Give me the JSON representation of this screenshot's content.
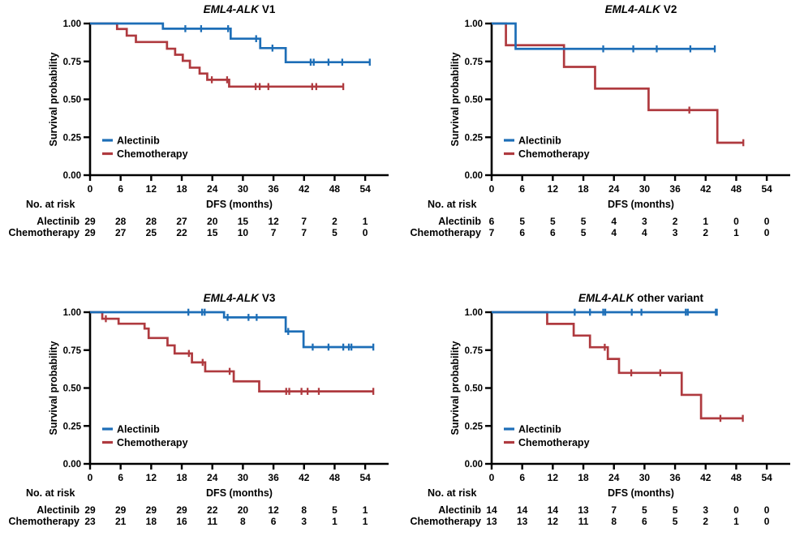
{
  "figure": {
    "colors": {
      "alectinib": "#1d6eb7",
      "chemotherapy": "#af3a3f",
      "axis": "#000000",
      "text": "#000000"
    },
    "risk_header": "No. at risk",
    "legend_labels": [
      "Alectinib",
      "Chemotherapy"
    ]
  },
  "chart_data": [
    {
      "id": "v1",
      "type": "line",
      "subtype": "kaplan-meier-step",
      "title_gene": "EML4-ALK",
      "title_variant": "V1",
      "xlabel": "DFS (months)",
      "ylabel": "Survival probability",
      "xticks": [
        0,
        6,
        12,
        18,
        24,
        30,
        36,
        42,
        48,
        54
      ],
      "yticks": [
        {
          "v": 1,
          "label": "1.00"
        },
        {
          "v": 0.75,
          "label": "0.75"
        },
        {
          "v": 0.5,
          "label": "0.50"
        },
        {
          "v": 0.25,
          "label": "0.25"
        },
        {
          "v": 0,
          "label": "0.00"
        }
      ],
      "xlim": [
        0,
        58
      ],
      "ylim": [
        0,
        1
      ],
      "legend_position": "inside-left-low",
      "grid": false,
      "series": [
        {
          "name": "Alectinib",
          "color_key": "alectinib",
          "drops": [
            [
              14.3,
              0.966
            ],
            [
              27.6,
              0.9
            ],
            [
              33.4,
              0.838
            ],
            [
              38.4,
              0.745
            ]
          ],
          "end_x": 54.9,
          "end_tick": true,
          "censors": [
            [
              18.7,
              0.966
            ],
            [
              21.8,
              0.966
            ],
            [
              27.1,
              0.966
            ],
            [
              32.6,
              0.9
            ],
            [
              35.8,
              0.838
            ],
            [
              43.3,
              0.745
            ],
            [
              43.9,
              0.745
            ],
            [
              46.8,
              0.745
            ],
            [
              49.5,
              0.745
            ]
          ]
        },
        {
          "name": "Chemotherapy",
          "color_key": "chemotherapy",
          "drops": [
            [
              5.3,
              0.964
            ],
            [
              7.2,
              0.92
            ],
            [
              9.0,
              0.878
            ],
            [
              15.1,
              0.834
            ],
            [
              16.7,
              0.794
            ],
            [
              18.2,
              0.754
            ],
            [
              19.6,
              0.709
            ],
            [
              21.5,
              0.67
            ],
            [
              23.0,
              0.629
            ],
            [
              27.3,
              0.584
            ]
          ],
          "end_x": 49.7,
          "end_tick": true,
          "censors": [
            [
              23.9,
              0.629
            ],
            [
              26.9,
              0.629
            ],
            [
              32.5,
              0.584
            ],
            [
              33.3,
              0.584
            ],
            [
              35.0,
              0.584
            ],
            [
              43.6,
              0.584
            ],
            [
              44.4,
              0.584
            ]
          ]
        }
      ],
      "risk_rows": [
        {
          "label": "Alectinib",
          "color_key": "alectinib",
          "values": [
            "29",
            "28",
            "28",
            "27",
            "20",
            "15",
            "12",
            "7",
            "2",
            "1"
          ]
        },
        {
          "label": "Chemotherapy",
          "color_key": "chemotherapy",
          "values": [
            "29",
            "27",
            "25",
            "22",
            "15",
            "10",
            "7",
            "7",
            "5",
            "0"
          ]
        }
      ]
    },
    {
      "id": "v2",
      "type": "line",
      "subtype": "kaplan-meier-step",
      "title_gene": "EML4-ALK",
      "title_variant": "V2",
      "xlabel": "DFS (months)",
      "ylabel": "Survival probability",
      "xticks": [
        0,
        6,
        12,
        18,
        24,
        30,
        36,
        42,
        48,
        54
      ],
      "yticks": [
        {
          "v": 1,
          "label": "1.00"
        },
        {
          "v": 0.75,
          "label": "0.75"
        },
        {
          "v": 0.5,
          "label": "0.50"
        },
        {
          "v": 0.25,
          "label": "0.25"
        },
        {
          "v": 0,
          "label": "0.00"
        }
      ],
      "xlim": [
        0,
        58
      ],
      "ylim": [
        0,
        1
      ],
      "legend_position": "inside-left-low",
      "grid": false,
      "series": [
        {
          "name": "Alectinib",
          "color_key": "alectinib",
          "drops": [
            [
              4.7,
              0.833
            ]
          ],
          "end_x": 43.8,
          "end_tick": true,
          "censors": [
            [
              21.9,
              0.833
            ],
            [
              27.8,
              0.833
            ],
            [
              32.4,
              0.833
            ],
            [
              39.0,
              0.833
            ]
          ]
        },
        {
          "name": "Chemotherapy",
          "color_key": "chemotherapy",
          "drops": [
            [
              2.8,
              0.857
            ],
            [
              14.2,
              0.714
            ],
            [
              20.3,
              0.571
            ],
            [
              30.8,
              0.429
            ],
            [
              44.3,
              0.214
            ]
          ],
          "end_x": 49.4,
          "end_tick": true,
          "censors": [
            [
              38.8,
              0.429
            ]
          ]
        }
      ],
      "risk_rows": [
        {
          "label": "Alectinib",
          "color_key": "alectinib",
          "values": [
            "6",
            "5",
            "5",
            "5",
            "4",
            "3",
            "2",
            "1",
            "0",
            "0"
          ]
        },
        {
          "label": "Chemotherapy",
          "color_key": "chemotherapy",
          "values": [
            "7",
            "6",
            "6",
            "5",
            "4",
            "4",
            "3",
            "2",
            "1",
            "0"
          ]
        }
      ]
    },
    {
      "id": "v3",
      "type": "line",
      "subtype": "kaplan-meier-step",
      "title_gene": "EML4-ALK",
      "title_variant": "V3",
      "xlabel": "DFS (months)",
      "ylabel": "Survival probability",
      "xticks": [
        0,
        6,
        12,
        18,
        24,
        30,
        36,
        42,
        48,
        54
      ],
      "yticks": [
        {
          "v": 1,
          "label": "1.00"
        },
        {
          "v": 0.75,
          "label": "0.75"
        },
        {
          "v": 0.5,
          "label": "0.50"
        },
        {
          "v": 0.25,
          "label": "0.25"
        },
        {
          "v": 0,
          "label": "0.00"
        }
      ],
      "xlim": [
        0,
        58
      ],
      "ylim": [
        0,
        1
      ],
      "legend_position": "inside-left-low",
      "grid": false,
      "series": [
        {
          "name": "Alectinib",
          "color_key": "alectinib",
          "drops": [
            [
              26.3,
              0.966
            ],
            [
              38.4,
              0.873
            ],
            [
              41.9,
              0.77
            ]
          ],
          "end_x": 55.6,
          "end_tick": true,
          "censors": [
            [
              19.3,
              1
            ],
            [
              22.0,
              1
            ],
            [
              22.5,
              1
            ],
            [
              27.0,
              0.966
            ],
            [
              31.1,
              0.966
            ],
            [
              32.7,
              0.966
            ],
            [
              38.9,
              0.873
            ],
            [
              43.7,
              0.77
            ],
            [
              46.8,
              0.77
            ],
            [
              49.7,
              0.77
            ],
            [
              50.8,
              0.77
            ],
            [
              51.3,
              0.77
            ]
          ]
        },
        {
          "name": "Chemotherapy",
          "color_key": "chemotherapy",
          "drops": [
            [
              2.4,
              0.957
            ],
            [
              5.6,
              0.924
            ],
            [
              10.7,
              0.892
            ],
            [
              11.5,
              0.83
            ],
            [
              15.2,
              0.781
            ],
            [
              16.6,
              0.728
            ],
            [
              20.0,
              0.669
            ],
            [
              22.6,
              0.61
            ],
            [
              28.2,
              0.544
            ],
            [
              33.2,
              0.478
            ]
          ],
          "end_x": 55.6,
          "end_tick": true,
          "censors": [
            [
              3.1,
              0.957
            ],
            [
              19.4,
              0.728
            ],
            [
              22.1,
              0.669
            ],
            [
              27.4,
              0.61
            ],
            [
              38.5,
              0.478
            ],
            [
              39.1,
              0.478
            ],
            [
              41.5,
              0.478
            ],
            [
              42.7,
              0.478
            ],
            [
              44.9,
              0.478
            ]
          ]
        }
      ],
      "risk_rows": [
        {
          "label": "Alectinib",
          "color_key": "alectinib",
          "values": [
            "29",
            "29",
            "29",
            "29",
            "22",
            "20",
            "12",
            "8",
            "5",
            "1"
          ]
        },
        {
          "label": "Chemotherapy",
          "color_key": "chemotherapy",
          "values": [
            "23",
            "21",
            "18",
            "16",
            "11",
            "8",
            "6",
            "3",
            "1",
            "1"
          ]
        }
      ]
    },
    {
      "id": "other-variant",
      "type": "line",
      "subtype": "kaplan-meier-step",
      "title_gene": "EML4-ALK",
      "title_variant": "other variant",
      "xlabel": "DFS (months)",
      "ylabel": "Survival probability",
      "xticks": [
        0,
        6,
        12,
        18,
        24,
        30,
        36,
        42,
        48,
        54
      ],
      "yticks": [
        {
          "v": 1,
          "label": "1.00"
        },
        {
          "v": 0.75,
          "label": "0.75"
        },
        {
          "v": 0.5,
          "label": "0.50"
        },
        {
          "v": 0.25,
          "label": "0.25"
        },
        {
          "v": 0,
          "label": "0.00"
        }
      ],
      "xlim": [
        0,
        58
      ],
      "ylim": [
        0,
        1
      ],
      "legend_position": "inside-left-low",
      "grid": false,
      "series": [
        {
          "name": "Alectinib",
          "color_key": "alectinib",
          "drops": [],
          "end_x": 44.2,
          "end_tick": true,
          "censors": [
            [
              16.3,
              1
            ],
            [
              19.3,
              1
            ],
            [
              21.9,
              1
            ],
            [
              22.3,
              1
            ],
            [
              27.5,
              1
            ],
            [
              29.4,
              1
            ],
            [
              38.1,
              1
            ],
            [
              38.5,
              1
            ],
            [
              44.0,
              1
            ]
          ]
        },
        {
          "name": "Chemotherapy",
          "color_key": "chemotherapy",
          "drops": [
            [
              10.9,
              0.923
            ],
            [
              16.1,
              0.846
            ],
            [
              19.3,
              0.769
            ],
            [
              22.8,
              0.692
            ],
            [
              25.0,
              0.6
            ],
            [
              37.3,
              0.455
            ],
            [
              41.1,
              0.3
            ]
          ],
          "end_x": 49.3,
          "end_tick": true,
          "censors": [
            [
              22.2,
              0.769
            ],
            [
              27.4,
              0.6
            ],
            [
              33.1,
              0.6
            ],
            [
              44.9,
              0.3
            ]
          ]
        }
      ],
      "risk_rows": [
        {
          "label": "Alectinib",
          "color_key": "alectinib",
          "values": [
            "14",
            "14",
            "14",
            "13",
            "7",
            "5",
            "5",
            "3",
            "0",
            "0"
          ]
        },
        {
          "label": "Chemotherapy",
          "color_key": "chemotherapy",
          "values": [
            "13",
            "13",
            "12",
            "11",
            "8",
            "6",
            "5",
            "2",
            "1",
            "0"
          ]
        }
      ]
    }
  ]
}
